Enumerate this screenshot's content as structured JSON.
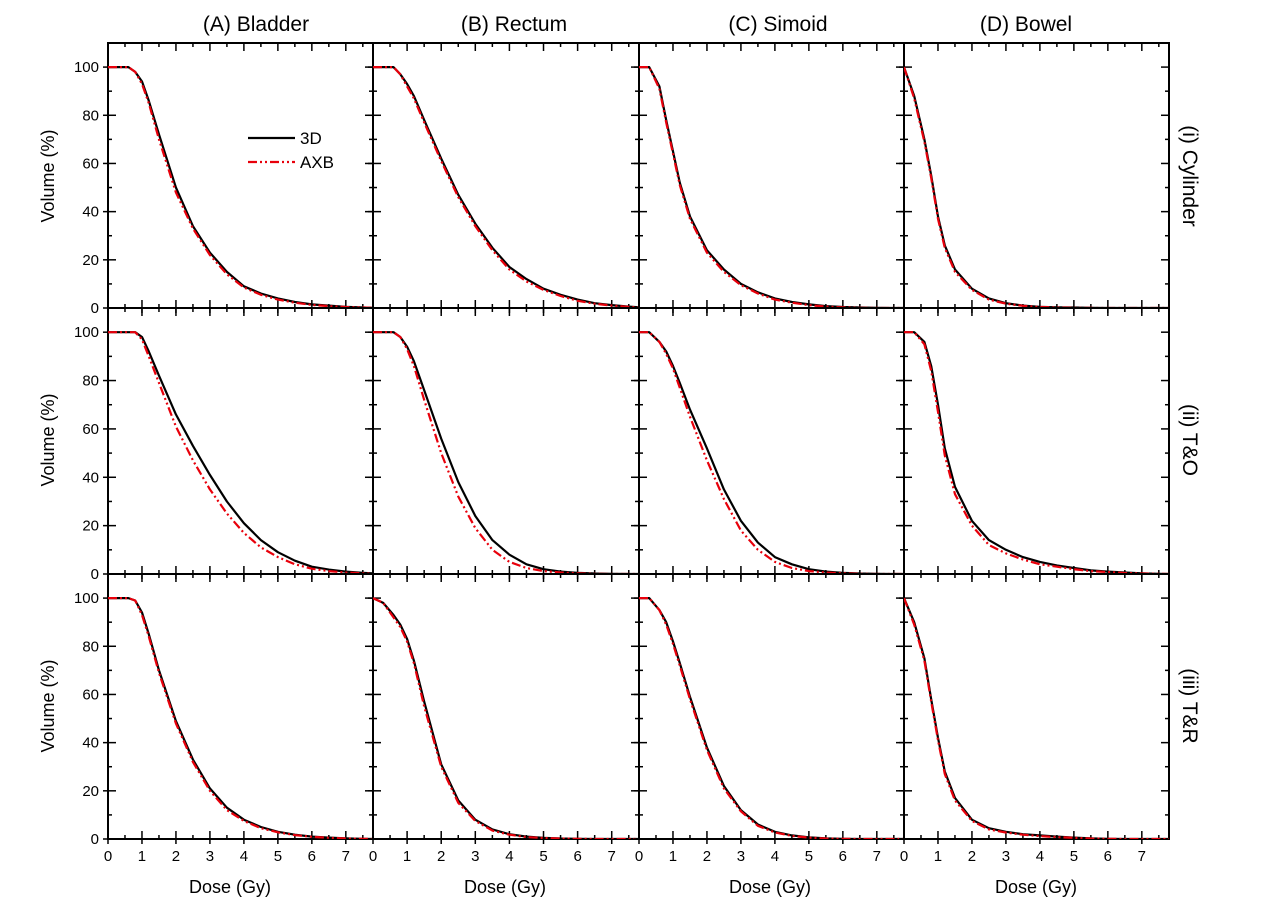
{
  "figure": {
    "column_titles": [
      "(A) Bladder",
      "(B) Rectum",
      "(C) Simoid",
      "(D) Bowel"
    ],
    "row_titles": [
      "(i) Cylinder",
      "(ii) T&O",
      "(iii) T&R"
    ],
    "xlabel": "Dose (Gy)",
    "ylabel": "Volume (%)",
    "legend": {
      "entries": [
        "3D",
        "AXB"
      ],
      "placement": "upper-right of first panel"
    },
    "colors": {
      "3D": "#000000",
      "AXB": "#e8000b"
    }
  },
  "chart_data": {
    "type": "line",
    "layout": "3x4 grid, shared axes",
    "xlim": [
      0,
      7.8
    ],
    "ylim": [
      0,
      110
    ],
    "xticks": [
      0,
      1,
      2,
      3,
      4,
      5,
      6,
      7
    ],
    "yticks": [
      0,
      20,
      40,
      60,
      80,
      100
    ],
    "xlabel": "Dose (Gy)",
    "ylabel": "Volume (%)",
    "x": [
      0,
      0.3,
      0.6,
      0.8,
      1.0,
      1.2,
      1.5,
      2.0,
      2.5,
      3.0,
      3.5,
      4.0,
      4.5,
      5.0,
      5.5,
      6.0,
      6.5,
      7.0,
      7.5,
      7.8
    ],
    "panels": [
      {
        "row": "(i) Cylinder",
        "col": "(A) Bladder",
        "series": [
          {
            "name": "3D",
            "values": [
              100,
              100,
              100,
              98,
              94,
              86,
              72,
              50,
              34,
              23,
              15,
              9,
              6,
              4,
              2.5,
              1.5,
              1,
              0.5,
              0.2,
              0.1
            ]
          },
          {
            "name": "AXB",
            "values": [
              100,
              100,
              100,
              98,
              93,
              85,
              70,
              48,
              33,
              22,
              14,
              8.5,
              5.5,
              3.5,
              2.2,
              1.3,
              0.8,
              0.4,
              0.2,
              0.1
            ]
          }
        ]
      },
      {
        "row": "(i) Cylinder",
        "col": "(B) Rectum",
        "series": [
          {
            "name": "3D",
            "values": [
              100,
              100,
              100,
              97,
              93,
              88,
              78,
              62,
              47,
              35,
              25,
              17,
              12,
              8,
              5.5,
              3.5,
              2,
              1.2,
              0.6,
              0.3
            ]
          },
          {
            "name": "AXB",
            "values": [
              100,
              100,
              100,
              97,
              92,
              87,
              77,
              61,
              46,
              34,
              24,
              16,
              11,
              7.5,
              5,
              3,
              1.8,
              1,
              0.5,
              0.2
            ]
          }
        ]
      },
      {
        "row": "(i) Cylinder",
        "col": "(C) Simoid",
        "series": [
          {
            "name": "3D",
            "values": [
              100,
              100,
              92,
              78,
              65,
              52,
              38,
              24,
              16,
              10,
              6.5,
              4,
              2.5,
              1.5,
              0.8,
              0.4,
              0.2,
              0.1,
              0,
              0
            ]
          },
          {
            "name": "AXB",
            "values": [
              100,
              100,
              91,
              77,
              64,
              51,
              37,
              23,
              15,
              9.5,
              6,
              3.5,
              2.2,
              1.2,
              0.6,
              0.3,
              0.1,
              0.05,
              0,
              0
            ]
          }
        ]
      },
      {
        "row": "(i) Cylinder",
        "col": "(D) Bowel",
        "series": [
          {
            "name": "3D",
            "values": [
              100,
              88,
              70,
              55,
              38,
              26,
              16,
              8,
              4,
              2,
              1,
              0.5,
              0.3,
              0.2,
              0.1,
              0,
              0,
              0,
              0,
              0
            ]
          },
          {
            "name": "AXB",
            "values": [
              100,
              87,
              69,
              54,
              37,
              25,
              15,
              7.5,
              3.5,
              1.8,
              0.9,
              0.4,
              0.2,
              0.1,
              0.05,
              0,
              0,
              0,
              0,
              0
            ]
          }
        ]
      },
      {
        "row": "(ii) T&O",
        "col": "(A) Bladder",
        "series": [
          {
            "name": "3D",
            "values": [
              100,
              100,
              100,
              100,
              98,
              92,
              82,
              66,
              53,
              41,
              30,
              21,
              14,
              9,
              5.5,
              3,
              1.8,
              1,
              0.5,
              0.3
            ]
          },
          {
            "name": "AXB",
            "values": [
              100,
              100,
              100,
              100,
              97,
              90,
              79,
              61,
              47,
              35,
              25,
              17,
              11,
              7,
              4,
              2.2,
              1.2,
              0.6,
              0.3,
              0.1
            ]
          }
        ]
      },
      {
        "row": "(ii) T&O",
        "col": "(B) Rectum",
        "series": [
          {
            "name": "3D",
            "values": [
              100,
              100,
              100,
              98,
              94,
              88,
              76,
              56,
              38,
              24,
              14,
              8,
              4,
              2,
              1,
              0.5,
              0.2,
              0.1,
              0,
              0
            ]
          },
          {
            "name": "AXB",
            "values": [
              100,
              100,
              100,
              98,
              93,
              86,
              72,
              50,
              32,
              19,
              10,
              5,
              2.5,
              1.2,
              0.6,
              0.3,
              0.1,
              0,
              0,
              0
            ]
          }
        ]
      },
      {
        "row": "(ii) T&O",
        "col": "(C) Simoid",
        "series": [
          {
            "name": "3D",
            "values": [
              100,
              100,
              96,
              92,
              86,
              79,
              68,
              52,
              35,
              22,
              13,
              7,
              4,
              2,
              1,
              0.5,
              0.2,
              0.1,
              0,
              0
            ]
          },
          {
            "name": "AXB",
            "values": [
              100,
              100,
              96,
              91,
              85,
              77,
              65,
              47,
              31,
              18,
              10,
              5,
              2.5,
              1.2,
              0.6,
              0.3,
              0.1,
              0,
              0,
              0
            ]
          }
        ]
      },
      {
        "row": "(ii) T&O",
        "col": "(D) Bowel",
        "series": [
          {
            "name": "3D",
            "values": [
              100,
              100,
              96,
              86,
              70,
              52,
              36,
              22,
              14,
              10,
              7,
              5,
              3.5,
              2.5,
              1.5,
              1,
              0.6,
              0.3,
              0.1,
              0
            ]
          },
          {
            "name": "AXB",
            "values": [
              100,
              100,
              95,
              84,
              67,
              49,
              33,
              20,
              12,
              8.5,
              6,
              4,
              3,
              2,
              1.2,
              0.8,
              0.4,
              0.2,
              0.1,
              0
            ]
          }
        ]
      },
      {
        "row": "(iii) T&R",
        "col": "(A) Bladder",
        "series": [
          {
            "name": "3D",
            "values": [
              100,
              100,
              100,
              99,
              94,
              85,
              70,
              49,
              33,
              21,
              13,
              8,
              5,
              3,
              1.8,
              1,
              0.6,
              0.3,
              0.1,
              0
            ]
          },
          {
            "name": "AXB",
            "values": [
              100,
              100,
              100,
              99,
              93,
              84,
              69,
              48,
              32,
              20,
              12,
              7.5,
              4.5,
              2.8,
              1.6,
              0.9,
              0.5,
              0.2,
              0.1,
              0
            ]
          }
        ]
      },
      {
        "row": "(iii) T&R",
        "col": "(B) Rectum",
        "series": [
          {
            "name": "3D",
            "values": [
              100,
              98,
              93,
              89,
              83,
              74,
              57,
              31,
              16,
              8,
              4,
              2,
              1,
              0.5,
              0.2,
              0.1,
              0,
              0,
              0,
              0
            ]
          },
          {
            "name": "AXB",
            "values": [
              100,
              98,
              92,
              88,
              82,
              73,
              55,
              30,
              15,
              7.5,
              3.5,
              1.8,
              0.8,
              0.4,
              0.2,
              0.1,
              0,
              0,
              0,
              0
            ]
          }
        ]
      },
      {
        "row": "(iii) T&R",
        "col": "(C) Simoid",
        "series": [
          {
            "name": "3D",
            "values": [
              100,
              100,
              95,
              90,
              82,
              73,
              59,
              38,
              22,
              12,
              6,
              3,
              1.5,
              0.7,
              0.3,
              0.1,
              0,
              0,
              0,
              0
            ]
          },
          {
            "name": "AXB",
            "values": [
              100,
              100,
              95,
              89,
              81,
              72,
              58,
              37,
              21,
              11.5,
              5.5,
              2.7,
              1.3,
              0.6,
              0.2,
              0.1,
              0,
              0,
              0,
              0
            ]
          }
        ]
      },
      {
        "row": "(iii) T&R",
        "col": "(D) Bowel",
        "series": [
          {
            "name": "3D",
            "values": [
              100,
              90,
              75,
              58,
              42,
              28,
              17,
              8,
              4.5,
              3,
              2,
              1.5,
              1,
              0.6,
              0.3,
              0.1,
              0,
              0,
              0,
              0
            ]
          },
          {
            "name": "AXB",
            "values": [
              100,
              89,
              74,
              57,
              41,
              27,
              16,
              7.5,
              4,
              2.7,
              1.8,
              1.2,
              0.8,
              0.5,
              0.2,
              0.1,
              0,
              0,
              0,
              0
            ]
          }
        ]
      }
    ]
  }
}
